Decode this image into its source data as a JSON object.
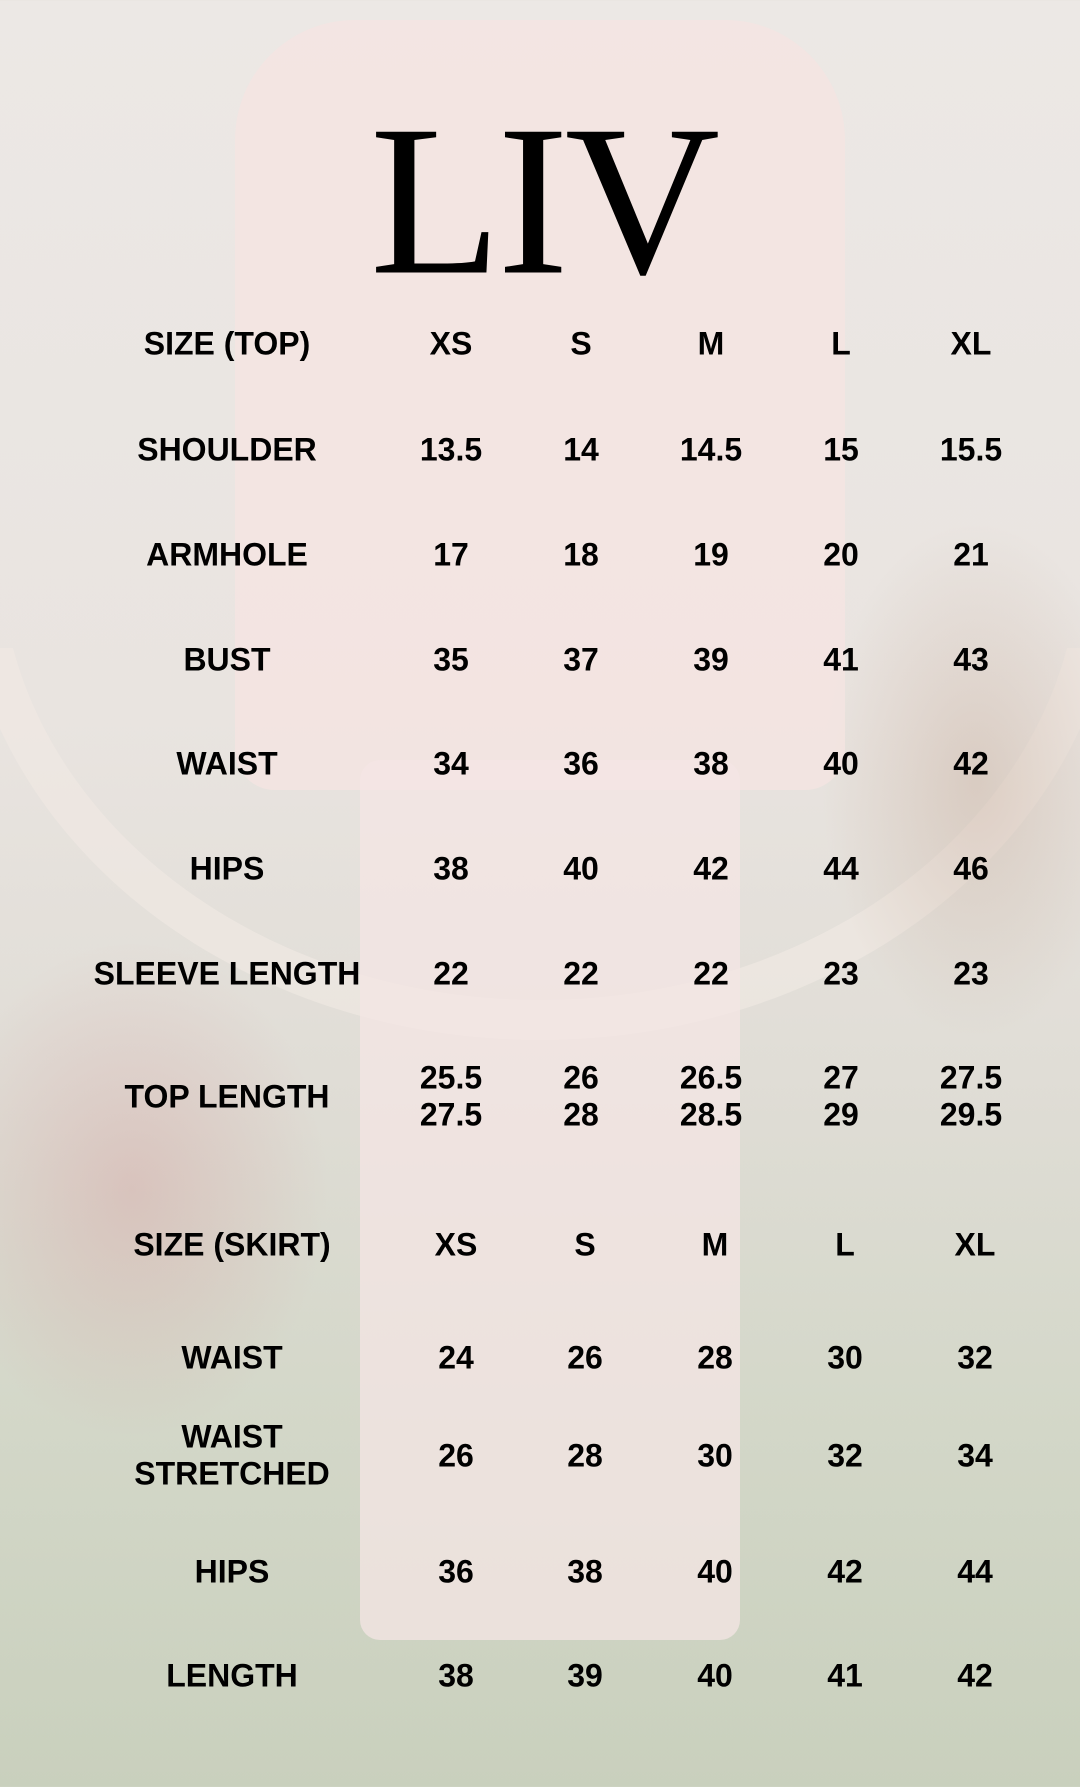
{
  "brand": "LIV",
  "top_table": {
    "header": [
      "SIZE (TOP)",
      "XS",
      "S",
      "M",
      "L",
      "XL"
    ],
    "rows": [
      {
        "label": "SHOULDER",
        "values": [
          "13.5",
          "14",
          "14.5",
          "15",
          "15.5"
        ]
      },
      {
        "label": "ARMHOLE",
        "values": [
          "17",
          "18",
          "19",
          "20",
          "21"
        ]
      },
      {
        "label": "BUST",
        "values": [
          "35",
          "37",
          "39",
          "41",
          "43"
        ]
      },
      {
        "label": "WAIST",
        "values": [
          "34",
          "36",
          "38",
          "40",
          "42"
        ]
      },
      {
        "label": "HIPS",
        "values": [
          "38",
          "40",
          "42",
          "44",
          "46"
        ]
      },
      {
        "label": "SLEEVE LENGTH",
        "values": [
          "22",
          "22",
          "22",
          "23",
          "23"
        ]
      },
      {
        "label": "TOP LENGTH",
        "values": [
          "25.5\n27.5",
          "26\n28",
          "26.5\n28.5",
          "27\n29",
          "27.5\n29.5"
        ]
      }
    ]
  },
  "skirt_table": {
    "header": [
      "SIZE (SKIRT)",
      "XS",
      "S",
      "M",
      "L",
      "XL"
    ],
    "rows": [
      {
        "label": "WAIST",
        "values": [
          "24",
          "26",
          "28",
          "30",
          "32"
        ]
      },
      {
        "label": "WAIST\nSTRETCHED",
        "values": [
          "26",
          "28",
          "30",
          "32",
          "34"
        ]
      },
      {
        "label": "HIPS",
        "values": [
          "36",
          "38",
          "40",
          "42",
          "44"
        ]
      },
      {
        "label": "LENGTH",
        "values": [
          "38",
          "39",
          "40",
          "41",
          "42"
        ]
      }
    ]
  }
}
